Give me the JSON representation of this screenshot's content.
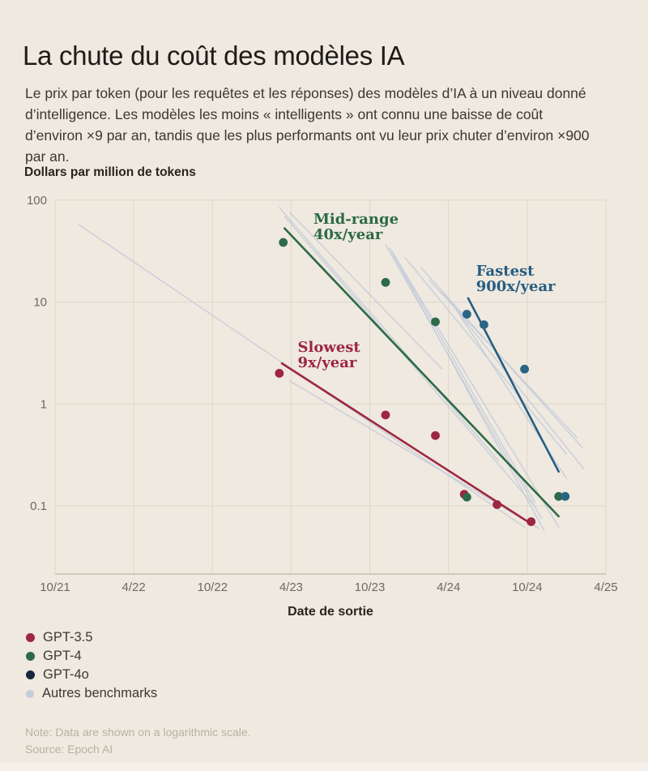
{
  "header": {
    "title": "La chute du coût des modèles IA",
    "description": "Le prix par token (pour les requêtes et les réponses) des modèles d’IA à un niveau donné d’intelligence. Les modèles les moins « intelligents » ont connu une baisse de coût d’environ ×9 par an, tandis que les plus performants ont vu leur prix chuter d’environ ×900 par an."
  },
  "footer": {
    "note": "Note: Data are shown on a logarithmic scale.",
    "source": "Source: Epoch AI"
  },
  "colors": {
    "background": "#EFE9E0",
    "grid": "#DFD7C9",
    "axis_line": "#BDB5A7",
    "tick_text": "#6E6A60",
    "gpt35_red": "#9D2642",
    "gpt4_green": "#2D6A4A",
    "gpt4o_blue_chart": "#2B6585",
    "gpt4o_navy_legend": "#16263E",
    "benchmark_gray": "#C3CCD9"
  },
  "legend": {
    "items": [
      {
        "id": "gpt-3-5",
        "label": "GPT-3.5",
        "color": "#9D2642",
        "dot": 11
      },
      {
        "id": "gpt-4",
        "label": "GPT-4",
        "color": "#2D6A4A",
        "dot": 11
      },
      {
        "id": "gpt-4o",
        "label": "GPT-4o",
        "color": "#16263E",
        "dot": 11
      },
      {
        "id": "autres-benchmarks",
        "label": "Autres benchmarks",
        "color": "#C3CCD9",
        "dot": 10
      }
    ]
  },
  "chart_data": {
    "type": "scatter",
    "title": "Dollars par million de tokens",
    "xlabel": "Date de sortie",
    "ylabel": "Dollars par million de tokens",
    "y_axis": {
      "label": "Dollars par million de tokens",
      "scale": "logarithmic",
      "range": [
        0.02,
        100
      ],
      "ticks": [
        {
          "v": 100,
          "label": "100"
        },
        {
          "v": 10,
          "label": "10"
        },
        {
          "v": 1,
          "label": "1"
        },
        {
          "v": 0.1,
          "label": "0.1"
        }
      ]
    },
    "x_axis": {
      "label": "Date de sortie",
      "unit": "months after 10/2021",
      "ticks": [
        {
          "m": 0,
          "label": "10/21"
        },
        {
          "m": 6,
          "label": "4/22"
        },
        {
          "m": 12,
          "label": "10/22"
        },
        {
          "m": 18,
          "label": "4/23"
        },
        {
          "m": 24,
          "label": "10/23"
        },
        {
          "m": 30,
          "label": "4/24"
        },
        {
          "m": 36,
          "label": "10/24"
        },
        {
          "m": 42,
          "label": "4/25"
        }
      ]
    },
    "series": [
      {
        "name": "GPT-3.5",
        "color": "#9D2642",
        "points": [
          [
            17.1,
            2.0
          ],
          [
            25.2,
            0.78
          ],
          [
            29.0,
            0.49
          ],
          [
            31.2,
            0.13
          ],
          [
            33.7,
            0.103
          ],
          [
            36.3,
            0.07
          ]
        ]
      },
      {
        "name": "GPT-4",
        "color": "#2D6A4A",
        "points": [
          [
            17.4,
            38.5
          ],
          [
            25.2,
            15.6
          ],
          [
            29.0,
            6.4
          ],
          [
            31.4,
            0.122
          ],
          [
            38.4,
            0.124
          ]
        ]
      },
      {
        "name": "GPT-4o",
        "color": "#2B6585",
        "points": [
          [
            31.4,
            7.6
          ],
          [
            32.7,
            6.0
          ],
          [
            35.8,
            2.2
          ],
          [
            38.9,
            0.124
          ]
        ]
      }
    ],
    "trend_lines": [
      {
        "name": "Slowest 9x/year",
        "label_lines": [
          "Slowest",
          "9x/year"
        ],
        "color": "#9D2642",
        "from": [
          17.3,
          2.5
        ],
        "to": [
          36.2,
          0.068
        ],
        "label_at": [
          18.5,
          3.25
        ]
      },
      {
        "name": "Mid-range 40x/year",
        "label_lines": [
          "Mid-range",
          "40x/year"
        ],
        "color": "#2C6A46",
        "from": [
          17.5,
          52.9
        ],
        "to": [
          38.4,
          0.079
        ],
        "label_at": [
          19.7,
          58.6
        ]
      },
      {
        "name": "Fastest 900x/year",
        "label_lines": [
          "Fastest",
          "900x/year"
        ],
        "color": "#275D80",
        "from": [
          31.5,
          10.9
        ],
        "to": [
          38.4,
          0.217
        ],
        "label_at": [
          32.1,
          18.2
        ]
      }
    ],
    "benchmark_lines": {
      "name": "Autres benchmarks",
      "color": "#C3CCD9",
      "segments": [
        [
          1.8,
          57.6,
          35.8,
          0.062
        ],
        [
          17.1,
          84.6,
          33.8,
          0.279
        ],
        [
          17.5,
          69.2,
          36.6,
          0.098
        ],
        [
          17.9,
          75.8,
          29.5,
          2.21
        ],
        [
          25.2,
          36.5,
          37.1,
          0.075
        ],
        [
          25.5,
          33.9,
          37.3,
          0.057
        ],
        [
          25.7,
          31.5,
          36.6,
          0.108
        ],
        [
          25.9,
          28.2,
          38.4,
          0.062
        ],
        [
          27.9,
          21.8,
          40.2,
          0.374
        ],
        [
          28.5,
          16.6,
          39.8,
          0.466
        ],
        [
          29.5,
          12.6,
          40.3,
          0.232
        ],
        [
          26.7,
          27.2,
          39.0,
          0.323
        ],
        [
          30.3,
          9.6,
          39.0,
          0.186
        ],
        [
          17.9,
          1.68,
          36.9,
          0.06
        ]
      ]
    }
  }
}
